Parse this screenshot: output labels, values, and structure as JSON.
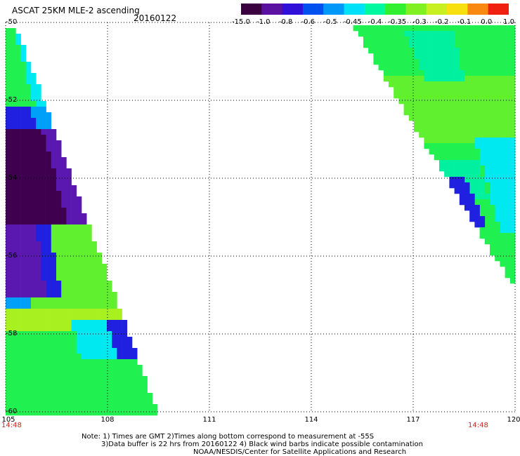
{
  "header": {
    "title": "ASCAT 25KM MLE-2 ascending",
    "date": "20160122"
  },
  "color_scale": {
    "labels": [
      "-15.0",
      "-1.0",
      "-0.8",
      "-0.6",
      "-0.5",
      "-0.45",
      "-0.4",
      "-0.35",
      "-0.3",
      "-0.2",
      "-0.1",
      "0.0",
      "1.0"
    ],
    "colors": [
      "#3a0040",
      "#5a10a0",
      "#3010d8",
      "#0050f0",
      "#0098f8",
      "#00e0f8",
      "#00f8a0",
      "#30f030",
      "#80f020",
      "#c8f020",
      "#f8e010",
      "#f88810",
      "#f02010"
    ]
  },
  "map": {
    "lat_labels": [
      "-50",
      "-52",
      "-54",
      "-56",
      "-58",
      "-60"
    ],
    "lon_labels": [
      "105",
      "108",
      "111",
      "114",
      "117",
      "120"
    ],
    "lat_range": [
      -60,
      -50
    ],
    "lon_range": [
      105,
      120
    ],
    "time_left": "14:48",
    "time_right": "14:48"
  },
  "notes": {
    "line1": "Note: 1) Times are GMT 2)Times along bottom correspond to measurement at -55S",
    "line2": "3)Data buffer is 22 hrs from 20160122 4) Black wind barbs indicate possible contamination",
    "line3": "NOAA/NESDIS/Center for Satellite Applications and Research"
  }
}
